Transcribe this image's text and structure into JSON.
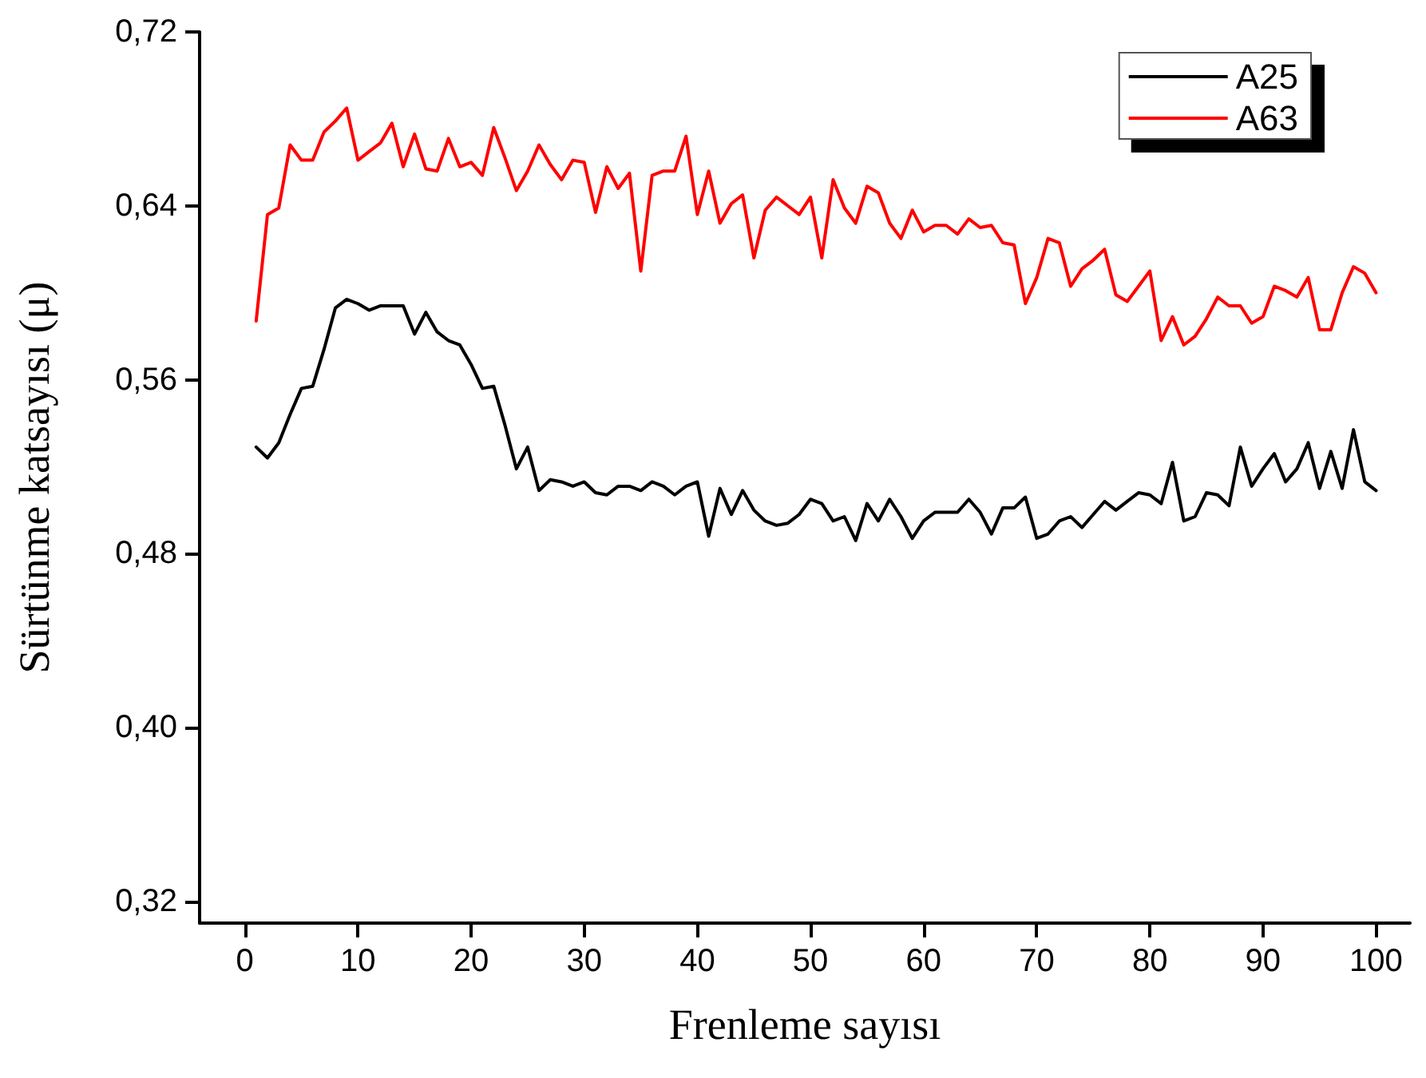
{
  "chart_data": {
    "type": "line",
    "xlabel": "Frenleme sayısı",
    "ylabel": "Sürtünme katsayısı (μ)",
    "x": [
      1,
      2,
      3,
      4,
      5,
      6,
      7,
      8,
      9,
      10,
      11,
      12,
      13,
      14,
      15,
      16,
      17,
      18,
      19,
      20,
      21,
      22,
      23,
      24,
      25,
      26,
      27,
      28,
      29,
      30,
      31,
      32,
      33,
      34,
      35,
      36,
      37,
      38,
      39,
      40,
      41,
      42,
      43,
      44,
      45,
      46,
      47,
      48,
      49,
      50,
      51,
      52,
      53,
      54,
      55,
      56,
      57,
      58,
      59,
      60,
      61,
      62,
      63,
      64,
      65,
      66,
      67,
      68,
      69,
      70,
      71,
      72,
      73,
      74,
      75,
      76,
      77,
      78,
      79,
      80,
      81,
      82,
      83,
      84,
      85,
      86,
      87,
      88,
      89,
      90,
      91,
      92,
      93,
      94,
      95,
      96,
      97,
      98,
      99,
      100
    ],
    "series": [
      {
        "name": "A25",
        "color": "#000000",
        "values": [
          0.529,
          0.524,
          0.531,
          0.544,
          0.556,
          0.557,
          0.574,
          0.593,
          0.597,
          0.595,
          0.592,
          0.594,
          0.594,
          0.594,
          0.581,
          0.591,
          0.582,
          0.578,
          0.576,
          0.567,
          0.556,
          0.557,
          0.539,
          0.519,
          0.529,
          0.509,
          0.514,
          0.513,
          0.511,
          0.513,
          0.508,
          0.507,
          0.511,
          0.511,
          0.509,
          0.513,
          0.511,
          0.507,
          0.511,
          0.513,
          0.488,
          0.51,
          0.498,
          0.509,
          0.5,
          0.495,
          0.493,
          0.494,
          0.498,
          0.505,
          0.503,
          0.495,
          0.497,
          0.486,
          0.503,
          0.495,
          0.505,
          0.497,
          0.487,
          0.495,
          0.499,
          0.499,
          0.499,
          0.505,
          0.499,
          0.489,
          0.501,
          0.501,
          0.506,
          0.487,
          0.489,
          0.495,
          0.497,
          0.492,
          0.498,
          0.504,
          0.5,
          0.504,
          0.508,
          0.507,
          0.503,
          0.522,
          0.495,
          0.497,
          0.508,
          0.507,
          0.502,
          0.529,
          0.511,
          0.519,
          0.526,
          0.513,
          0.519,
          0.531,
          0.51,
          0.527,
          0.51,
          0.537,
          0.513,
          0.509
        ]
      },
      {
        "name": "A63",
        "color": "#ff0000",
        "values": [
          0.587,
          0.636,
          0.639,
          0.668,
          0.661,
          0.661,
          0.674,
          0.679,
          0.685,
          0.661,
          0.665,
          0.669,
          0.678,
          0.658,
          0.673,
          0.657,
          0.656,
          0.671,
          0.658,
          0.66,
          0.654,
          0.676,
          0.662,
          0.647,
          0.656,
          0.668,
          0.659,
          0.652,
          0.661,
          0.66,
          0.637,
          0.658,
          0.648,
          0.655,
          0.61,
          0.654,
          0.656,
          0.656,
          0.672,
          0.636,
          0.656,
          0.632,
          0.641,
          0.645,
          0.616,
          0.638,
          0.644,
          0.64,
          0.636,
          0.644,
          0.616,
          0.652,
          0.639,
          0.632,
          0.649,
          0.646,
          0.632,
          0.625,
          0.638,
          0.628,
          0.631,
          0.631,
          0.627,
          0.634,
          0.63,
          0.631,
          0.623,
          0.622,
          0.595,
          0.607,
          0.625,
          0.623,
          0.603,
          0.611,
          0.615,
          0.62,
          0.599,
          0.596,
          0.603,
          0.61,
          0.578,
          0.589,
          0.576,
          0.58,
          0.588,
          0.598,
          0.594,
          0.594,
          0.586,
          0.589,
          0.603,
          0.601,
          0.598,
          0.607,
          0.583,
          0.583,
          0.6,
          0.612,
          0.609,
          0.6
        ]
      }
    ],
    "xlim": [
      -4,
      103
    ],
    "xticks": [
      0,
      10,
      20,
      30,
      40,
      50,
      60,
      70,
      80,
      90,
      100
    ],
    "ylim": [
      0.31,
      0.72
    ],
    "yticks": [
      {
        "value": 0.32,
        "label": "0,32"
      },
      {
        "value": 0.4,
        "label": "0,40"
      },
      {
        "value": 0.48,
        "label": "0,48"
      },
      {
        "value": 0.56,
        "label": "0,56"
      },
      {
        "value": 0.64,
        "label": "0,64"
      },
      {
        "value": 0.72,
        "label": "0,72"
      }
    ],
    "grid": false,
    "legend": "top right",
    "marker": "none",
    "line_style": "solid"
  }
}
